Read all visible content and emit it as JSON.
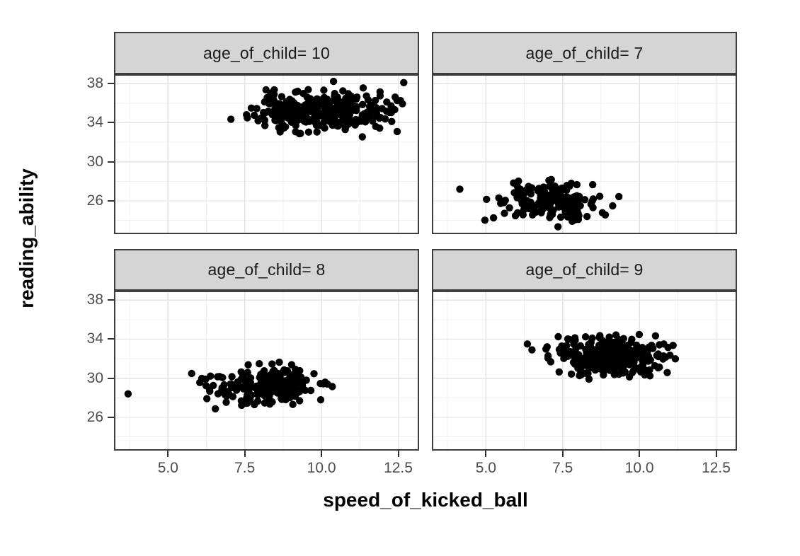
{
  "figure": {
    "background": "#ffffff"
  },
  "chart_data": {
    "type": "scatter",
    "title": "",
    "xlabel": "speed_of_kicked_ball",
    "ylabel": "reading_ability",
    "facet_variable": "age_of_child",
    "grid": true,
    "legend": "none",
    "xlim": [
      3.24,
      13.18
    ],
    "ylim": [
      22.6,
      38.95
    ],
    "x_major_ticks": [
      5.0,
      7.5,
      10.0,
      12.5
    ],
    "x_tick_labels": [
      "5.0",
      "7.5",
      "10.0",
      "12.5"
    ],
    "y_major_ticks": [
      26,
      30,
      34,
      38
    ],
    "y_tick_labels": [
      "26",
      "30",
      "34",
      "38"
    ],
    "x_minor_gridlines": [
      3.75,
      6.25,
      8.75,
      11.25
    ],
    "y_minor_gridlines": [
      24,
      28,
      32,
      36
    ],
    "point_color": "#000000",
    "point_radius_px": 5.2,
    "colors": {
      "strip_background": "#d5d5d5",
      "panel_border": "#3d3d3d",
      "grid_major": "#e3e3e3",
      "grid_minor": "#f0f0f0",
      "tick_label": "#4d4d4d",
      "tick_mark": "#333333",
      "axis_title": "#000000",
      "panel_background": "#ffffff"
    },
    "panels": [
      {
        "label": "age_of_child= 10",
        "facet_value": 10,
        "summary": {
          "n": 310,
          "x_mean": 9.95,
          "y_mean": 35.1,
          "x_range": [
            7.05,
            12.85
          ],
          "y_range": [
            32.3,
            38.4
          ]
        },
        "cluster": {
          "n": 310,
          "mean": [
            9.95,
            35.1
          ],
          "sd": [
            1.15,
            1.0
          ],
          "x_clamp": [
            7.4,
            12.85
          ],
          "y_clamp": [
            32.4,
            38.35
          ],
          "seed": 11
        },
        "outliers": [
          [
            7.05,
            34.35
          ]
        ]
      },
      {
        "label": "age_of_child= 7",
        "facet_value": 7,
        "summary": {
          "n": 160,
          "x_mean": 7.0,
          "y_mean": 26.1,
          "x_range": [
            4.15,
            9.8
          ],
          "y_range": [
            23.35,
            28.6
          ]
        },
        "cluster": {
          "n": 160,
          "mean": [
            7.0,
            26.1
          ],
          "sd": [
            0.95,
            1.0
          ],
          "x_clamp": [
            4.95,
            9.8
          ],
          "y_clamp": [
            23.9,
            28.6
          ],
          "seed": 22
        },
        "outliers": [
          [
            4.15,
            27.2
          ],
          [
            7.35,
            23.35
          ]
        ]
      },
      {
        "label": "age_of_child= 8",
        "facet_value": 8,
        "summary": {
          "n": 210,
          "x_mean": 8.2,
          "y_mean": 29.2,
          "x_range": [
            3.7,
            10.5
          ],
          "y_range": [
            26.4,
            31.7
          ]
        },
        "cluster": {
          "n": 210,
          "mean": [
            8.2,
            29.2
          ],
          "sd": [
            0.95,
            1.0
          ],
          "x_clamp": [
            5.75,
            10.5
          ],
          "y_clamp": [
            26.4,
            31.7
          ],
          "seed": 33
        },
        "outliers": [
          [
            3.7,
            28.4
          ]
        ]
      },
      {
        "label": "age_of_child= 9",
        "facet_value": 9,
        "summary": {
          "n": 280,
          "x_mean": 8.95,
          "y_mean": 32.1,
          "x_range": [
            6.35,
            11.6
          ],
          "y_range": [
            29.4,
            34.8
          ]
        },
        "cluster": {
          "n": 280,
          "mean": [
            8.95,
            32.1
          ],
          "sd": [
            1.0,
            0.95
          ],
          "x_clamp": [
            6.9,
            11.6
          ],
          "y_clamp": [
            29.4,
            34.8
          ],
          "seed": 44
        },
        "outliers": [
          [
            6.35,
            33.5
          ],
          [
            6.5,
            32.9
          ]
        ]
      }
    ]
  }
}
